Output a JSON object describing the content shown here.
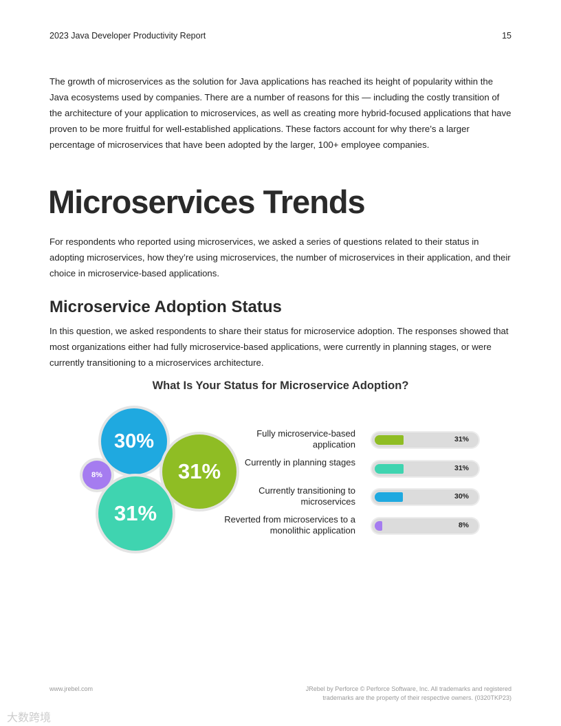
{
  "header": {
    "title": "2023 Java Developer Productivity Report",
    "page": "15"
  },
  "intro": "The growth of microservices as the solution for Java applications has reached its height of popularity within the Java ecosystems used by companies. There are a number of reasons for this — including the costly transition of the architecture of your application to microservices, as well as creating more hybrid-focused applications that have proven to be more fruitful for well-established applications. These factors account for why there’s a larger percentage of microservices that have been adopted by the larger, 100+ employee companies.",
  "section_title": "Microservices Trends",
  "section_text": "For respondents who reported using microservices, we asked a series of questions related to their status in adopting microservices, how they’re using microservices, the number of microservices in their application, and their choice in microservice-based applications.",
  "subsection_title": "Microservice Adoption Status",
  "subsection_text": "In this question, we asked respondents to share their status for microservice adoption. The responses showed that most organizations either had fully microservice-based applications, were currently in planning stages, or were currently transitioning to a microservices architecture.",
  "chart_data": {
    "type": "bar",
    "title": "What Is Your Status for Microservice Adoption?",
    "categories": [
      "Fully microservice-based application",
      "Currently in planning stages",
      "Currently transitioning to microservices",
      "Reverted from microservices to a monolithic application"
    ],
    "values": [
      31,
      31,
      30,
      8
    ],
    "labels": [
      "31%",
      "31%",
      "30%",
      "8%"
    ],
    "colors": [
      "#8fbd24",
      "#3fd4b0",
      "#1fa9e0",
      "#a57cf0"
    ],
    "bubble_labels": {
      "transitioning": "30%",
      "fully": "31%",
      "planning": "31%",
      "reverted": "8%"
    }
  },
  "footer": {
    "left": "www.jrebel.com",
    "right_line1": "JRebel by Perforce © Perforce Software, Inc. All trademarks and registered",
    "right_line2": "trademarks are the property of their respective owners. (0320TKP23)"
  },
  "watermark": "大数跨境"
}
